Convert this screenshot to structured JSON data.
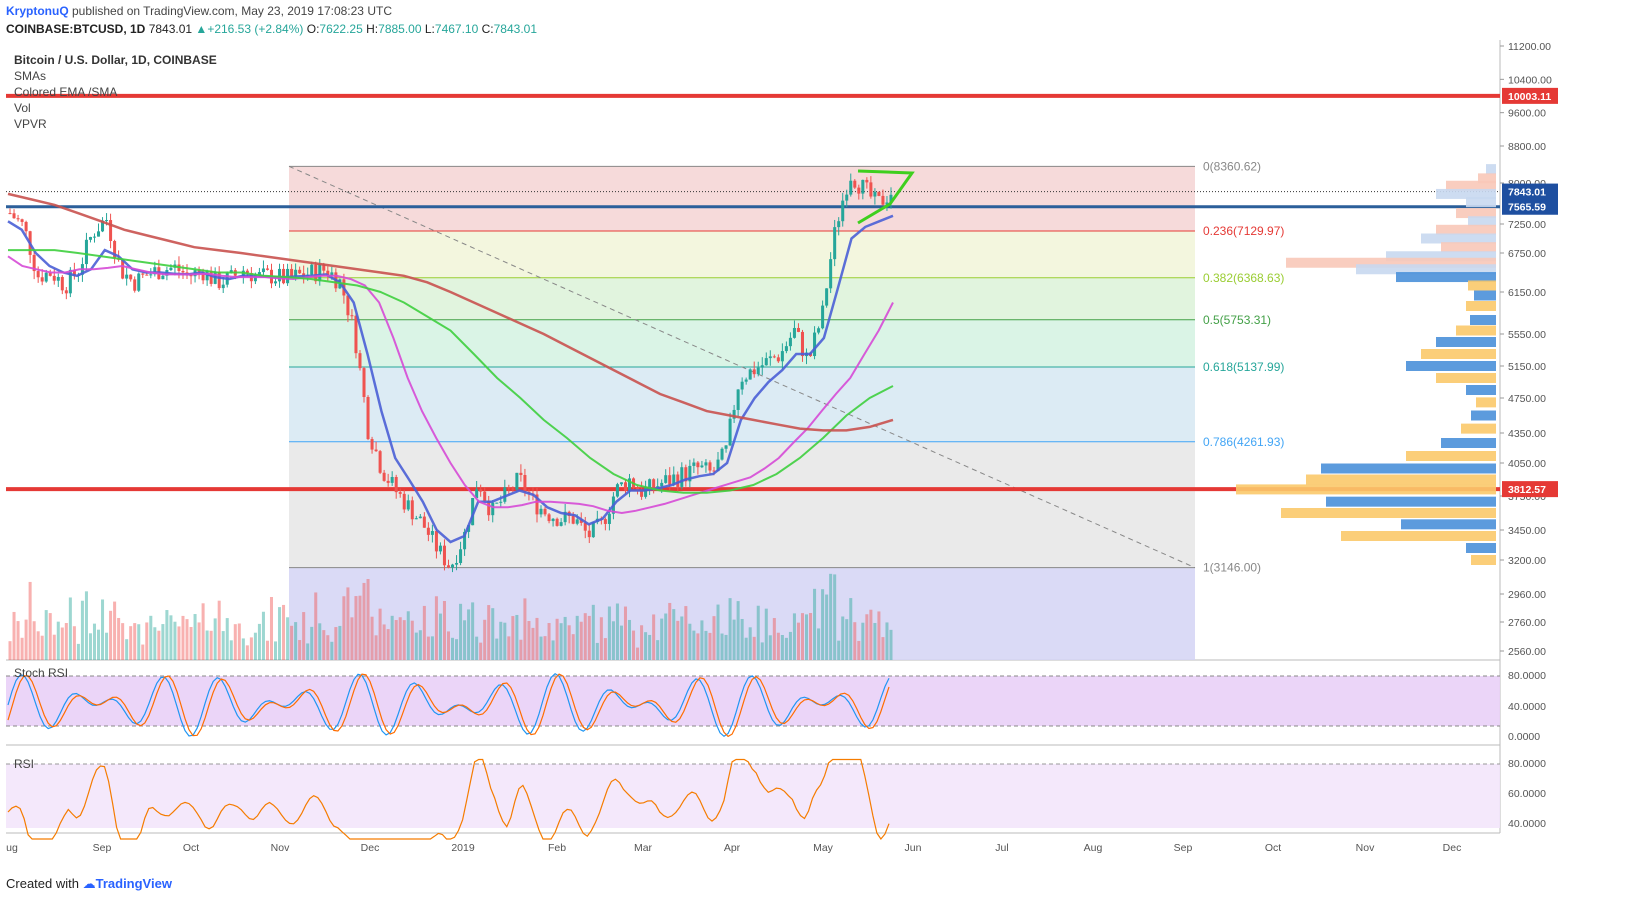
{
  "header": {
    "user": "KryptonuQ",
    "published": " published on TradingView.com, May 23, 2019 17:08:23 UTC",
    "symbol": "COINBASE:BTCUSD, 1D",
    "last": "7843.01",
    "change": "+216.53 (+2.84%)",
    "open_label": "O:",
    "open": "7622.25",
    "high_label": "H:",
    "high": "7885.00",
    "low_label": "L:",
    "low": "7467.10",
    "close_label": "C:",
    "close": "7843.01"
  },
  "legend": {
    "title": "Bitcoin / U.S. Dollar, 1D, COINBASE",
    "items": [
      "SMAs",
      "Colored EMA /SMA",
      "Vol",
      "VPVR"
    ]
  },
  "panes": {
    "stoch": "Stoch RSI",
    "rsi": "RSI"
  },
  "footer": {
    "created": "Created with",
    "brand": "TradingView"
  },
  "colors": {
    "up": "#26a69a",
    "down": "#ef5350",
    "hline": "#e53935",
    "triangle": "#3ecf1e"
  },
  "chart_data": {
    "type": "candlestick",
    "title": "Bitcoin / U.S. Dollar, 1D, COINBASE",
    "price_axis": {
      "ticks": [
        "11200.00",
        "10400.00",
        "9600.00",
        "8800.00",
        "8000.00",
        "7250.00",
        "6750.00",
        "6150.00",
        "5550.00",
        "5150.00",
        "4750.00",
        "4350.00",
        "4050.00",
        "3750.00",
        "3450.00",
        "3200.00",
        "2960.00",
        "2760.00",
        "2560.00"
      ],
      "badges": [
        {
          "value": "10003.11",
          "color": "#e53935"
        },
        {
          "value": "7843.01",
          "color": "#1e4fa0"
        },
        {
          "value": "7565.59",
          "color": "#1e4fa0"
        },
        {
          "value": "3812.57",
          "color": "#e53935"
        }
      ]
    },
    "time_axis": [
      "ug",
      "Sep",
      "Oct",
      "Nov",
      "Dec",
      "2019",
      "Feb",
      "Mar",
      "Apr",
      "May",
      "Jun",
      "Jul",
      "Aug",
      "Sep",
      "Oct",
      "Nov",
      "Dec"
    ],
    "horizontal_lines": [
      10003.11,
      3812.57,
      7565.59
    ],
    "fibonacci": [
      {
        "level": "0",
        "value": "8360.62",
        "price": 8360.62,
        "color": "#888888",
        "fill": "#f4d3d3"
      },
      {
        "level": "0.236",
        "value": "7129.97",
        "price": 7129.97,
        "color": "#e53935",
        "fill": "#f1f5d8"
      },
      {
        "level": "0.382",
        "value": "6368.63",
        "price": 6368.63,
        "color": "#9acd32",
        "fill": "#dcf2d8"
      },
      {
        "level": "0.5",
        "value": "5753.31",
        "price": 5753.31,
        "color": "#43a047",
        "fill": "#d3f2e2"
      },
      {
        "level": "0.618",
        "value": "5137.99",
        "price": 5137.99,
        "color": "#26a69a",
        "fill": "#d6e8f2"
      },
      {
        "level": "0.786",
        "value": "4261.93",
        "price": 4261.93,
        "color": "#42a5f5",
        "fill": "#e6e6e6"
      },
      {
        "level": "1",
        "value": "3146.00",
        "price": 3146.0,
        "color": "#888888",
        "fill": "#d3d3f4"
      }
    ],
    "series": [
      {
        "price": [
          7450,
          7200,
          6400,
          6450,
          6250,
          6500,
          7100,
          7350,
          6500,
          6300,
          6420,
          6500,
          6520,
          6400,
          6480,
          6300,
          6350,
          6500,
          6380,
          6400,
          6350,
          6400,
          6450,
          6500,
          6300,
          5600,
          4400,
          4000,
          3800,
          3650,
          3500,
          3300,
          3150,
          3400,
          3900,
          3600,
          3750,
          3900,
          3700,
          3600,
          3550,
          3550,
          3400,
          3500,
          3800,
          3900,
          3780,
          3850,
          3900,
          3950,
          4000,
          3950,
          4150,
          5000,
          5100,
          5200,
          5300,
          5600,
          5200,
          5800,
          7200,
          8200,
          7900,
          7600,
          7843
        ]
      },
      {
        "price": [
          7300,
          7150,
          6750,
          6550,
          6450,
          6400,
          6500,
          6800,
          6700,
          6500,
          6450,
          6450,
          6430,
          6420,
          6450,
          6380,
          6350,
          6400,
          6400,
          6380,
          6380,
          6390,
          6400,
          6420,
          6300,
          6000,
          5300,
          4600,
          4100,
          3900,
          3700,
          3450,
          3350,
          3400,
          3700,
          3700,
          3750,
          3800,
          3760,
          3650,
          3600,
          3580,
          3500,
          3550,
          3700,
          3800,
          3800,
          3820,
          3850,
          3900,
          3930,
          3950,
          4050,
          4500,
          4750,
          4950,
          5100,
          5300,
          5300,
          5500,
          6200,
          7000,
          7200,
          7300,
          7400
        ]
      },
      {
        "price": [
          6700,
          6550,
          6500,
          6450,
          6450,
          6500,
          6500,
          6520,
          6550,
          6500,
          6450,
          6420,
          6420,
          6420,
          6430,
          6400,
          6380,
          6380,
          6380,
          6360,
          6350,
          6380,
          6400,
          6400,
          6350,
          6250,
          6000,
          5500,
          5000,
          4600,
          4300,
          4050,
          3850,
          3700,
          3650,
          3650,
          3670,
          3700,
          3700,
          3690,
          3680,
          3660,
          3620,
          3600,
          3620,
          3650,
          3680,
          3720,
          3760,
          3800,
          3840,
          3880,
          3920,
          4000,
          4100,
          4250,
          4400,
          4600,
          4800,
          5000,
          5300,
          5600,
          6000
        ]
      },
      {
        "price": [
          6800,
          6800,
          6800,
          6750,
          6700,
          6650,
          6600,
          6550,
          6500,
          6450,
          6450,
          6400,
          6380,
          6350,
          6300,
          6250,
          6150,
          6000,
          5800,
          5600,
          5300,
          5000,
          4750,
          4500,
          4300,
          4100,
          3950,
          3850,
          3800,
          3780,
          3780,
          3800,
          3850,
          3950,
          4100,
          4300,
          4550,
          4750,
          4900
        ]
      },
      {
        "price": [
          7800,
          7700,
          7600,
          7450,
          7300,
          7150,
          7050,
          6950,
          6850,
          6800,
          6750,
          6700,
          6650,
          6600,
          6550,
          6500,
          6450,
          6400,
          6300,
          6150,
          6000,
          5850,
          5700,
          5550,
          5400,
          5250,
          5100,
          4950,
          4800,
          4700,
          4600,
          4550,
          4500,
          4450,
          4400,
          4380,
          4380,
          4420,
          4500
        ]
      }
    ]
  }
}
